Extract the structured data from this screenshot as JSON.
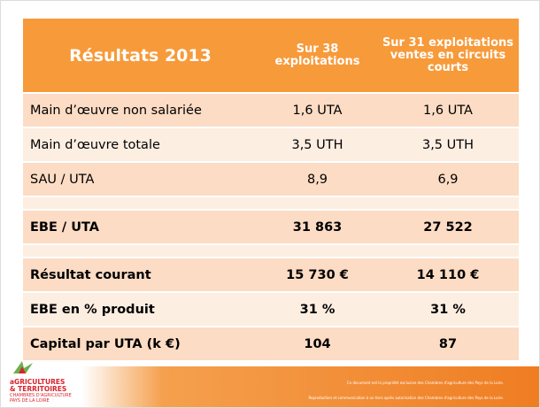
{
  "table": {
    "header": [
      "Résultats 2013",
      "Sur 38 exploitations",
      "Sur 31 exploitations ventes en circuits courts"
    ],
    "rows": [
      [
        "Main d’œuvre non salariée",
        "1,6 UTA",
        "1,6 UTA"
      ],
      [
        "Main d’œuvre totale",
        "3,5 UTH",
        "3,5 UTH"
      ],
      [
        "SAU / UTA",
        "8,9",
        "6,9"
      ],
      [
        "EBE / UTA",
        "31 863",
        "27 522"
      ],
      [
        "Résultat courant",
        "15 730 €",
        "14 110 €"
      ],
      [
        "EBE en % produit",
        "31 %",
        "31 %"
      ],
      [
        "Capital par UTA (k €)",
        "104",
        "87"
      ]
    ]
  },
  "footer": {
    "logo": [
      "aGRICULTURES",
      "& TERRITOIRES",
      "CHAMBRES D'AGRICULTURE",
      "PAYS DE LA LOIRE"
    ],
    "notice": [
      "Ce document est la propriété exclusive des Chambres d'agriculture des Pays de la Loire.",
      "Reproduction et communication à un tiers après autorisation des Chambres d'agriculture des Pays de la Loire."
    ]
  }
}
